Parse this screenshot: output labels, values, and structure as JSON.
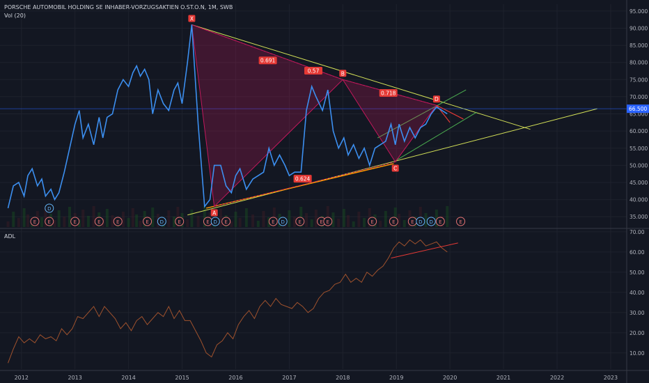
{
  "header": {
    "symbol_title": "PORSCHE AUTOMOBIL HOLDING SE INHABER-VORZUGSAKTIEN O.ST.O.N, 1M, SWB",
    "volume_label": "Vol (20)",
    "indicator_label": "ADL"
  },
  "colors": {
    "background": "#131722",
    "price_line": "#3c8ff0",
    "adl_line": "#a0522d",
    "pattern": "#c2185b",
    "trend_yellow": "#d4e157",
    "trend_orange": "#ff9800",
    "trend_green": "#4caf50",
    "price_tag": "#2962ff",
    "text": "#b2b5be"
  },
  "chart_data": [
    {
      "type": "line",
      "title": "PORSCHE AUTOMOBIL HOLDING SE INHABER-VORZUGSAKTIEN O.ST.O.N, 1M, SWB",
      "ylim": [
        32,
        97
      ],
      "yticks": [
        35,
        40,
        45,
        50,
        55,
        60,
        65,
        70,
        75,
        80,
        85,
        90,
        95
      ],
      "ytick_labels": [
        "35.000",
        "40.000",
        "45.000",
        "50.000",
        "55.000",
        "60.000",
        "65.000",
        "70.000",
        "75.000",
        "80.000",
        "85.000",
        "90.000",
        "95.000"
      ],
      "current_price": 66.5,
      "current_price_label": "66.500",
      "x": [
        2011.75,
        2011.85,
        2011.95,
        2012.05,
        2012.12,
        2012.2,
        2012.3,
        2012.38,
        2012.45,
        2012.55,
        2012.62,
        2012.7,
        2012.8,
        2012.9,
        2013.0,
        2013.08,
        2013.15,
        2013.25,
        2013.35,
        2013.45,
        2013.52,
        2013.6,
        2013.7,
        2013.8,
        2013.9,
        2014.0,
        2014.08,
        2014.15,
        2014.22,
        2014.3,
        2014.38,
        2014.45,
        2014.55,
        2014.65,
        2014.75,
        2014.85,
        2014.92,
        2015.0,
        2015.1,
        2015.18,
        2015.3,
        2015.42,
        2015.52,
        2015.6,
        2015.72,
        2015.82,
        2015.92,
        2016.0,
        2016.08,
        2016.2,
        2016.32,
        2016.42,
        2016.52,
        2016.62,
        2016.72,
        2016.82,
        2016.92,
        2017.0,
        2017.1,
        2017.22,
        2017.32,
        2017.42,
        2017.5,
        2017.62,
        2017.72,
        2017.82,
        2017.92,
        2018.02,
        2018.1,
        2018.2,
        2018.3,
        2018.4,
        2018.5,
        2018.6,
        2018.7,
        2018.8,
        2018.9,
        2018.98,
        2019.05,
        2019.15,
        2019.25,
        2019.35,
        2019.45,
        2019.55,
        2019.65,
        2019.75,
        2019.85,
        2019.95
      ],
      "series": [
        {
          "values": [
            37.5,
            44,
            45,
            41,
            47,
            49,
            44,
            46,
            41,
            43,
            40,
            42,
            48,
            55,
            62,
            66,
            58,
            62,
            56,
            64,
            58,
            64,
            65,
            72,
            75,
            73,
            77,
            79,
            76,
            78,
            75,
            65,
            72,
            68,
            66,
            72,
            74,
            68,
            80,
            91,
            62,
            38,
            40,
            50,
            50,
            44,
            42,
            47,
            49,
            43,
            46,
            47,
            48,
            55,
            50,
            53,
            50,
            47,
            48,
            48,
            66,
            73,
            70,
            66,
            72,
            60,
            55,
            58,
            53,
            56,
            52,
            55,
            50,
            55,
            56,
            57,
            62,
            56,
            62,
            57,
            61,
            58,
            61,
            62,
            65,
            67,
            66,
            65
          ]
        }
      ],
      "pattern_points": [
        {
          "name": "X",
          "x": 2015.18,
          "y": 91
        },
        {
          "name": "A",
          "x": 2015.6,
          "y": 38
        },
        {
          "name": "B",
          "x": 2018.0,
          "y": 75
        },
        {
          "name": "C",
          "x": 2018.98,
          "y": 51
        },
        {
          "name": "D",
          "x": 2019.75,
          "y": 67.5
        }
      ],
      "ratios": [
        {
          "label": "0.691",
          "x": 2016.6,
          "y": 80.5
        },
        {
          "label": "0.57",
          "x": 2017.45,
          "y": 77.5
        },
        {
          "label": "0.718",
          "x": 2018.85,
          "y": 71
        },
        {
          "label": "0.624",
          "x": 2017.25,
          "y": 46
        }
      ],
      "events": {
        "earnings_label": "E",
        "dividend_label": "D"
      }
    },
    {
      "type": "line",
      "title": "ADL",
      "ylim": [
        2,
        71
      ],
      "yticks": [
        10,
        20,
        30,
        40,
        50,
        60,
        70
      ],
      "ytick_labels": [
        "10.00",
        "20.00",
        "30.00",
        "40.00",
        "50.00",
        "60.00",
        "70.00"
      ],
      "x": [
        2011.75,
        2011.85,
        2011.95,
        2012.05,
        2012.15,
        2012.25,
        2012.35,
        2012.45,
        2012.55,
        2012.65,
        2012.75,
        2012.85,
        2012.95,
        2013.05,
        2013.15,
        2013.25,
        2013.35,
        2013.45,
        2013.55,
        2013.65,
        2013.75,
        2013.85,
        2013.95,
        2014.05,
        2014.15,
        2014.25,
        2014.35,
        2014.45,
        2014.55,
        2014.65,
        2014.75,
        2014.85,
        2014.95,
        2015.05,
        2015.15,
        2015.25,
        2015.35,
        2015.45,
        2015.55,
        2015.65,
        2015.75,
        2015.85,
        2015.95,
        2016.05,
        2016.15,
        2016.25,
        2016.35,
        2016.45,
        2016.55,
        2016.65,
        2016.75,
        2016.85,
        2016.95,
        2017.05,
        2017.15,
        2017.25,
        2017.35,
        2017.45,
        2017.55,
        2017.65,
        2017.75,
        2017.85,
        2017.95,
        2018.05,
        2018.15,
        2018.25,
        2018.35,
        2018.45,
        2018.55,
        2018.65,
        2018.75,
        2018.85,
        2018.95,
        2019.05,
        2019.15,
        2019.25,
        2019.35,
        2019.45,
        2019.55,
        2019.65,
        2019.75,
        2019.85,
        2019.95
      ],
      "series": [
        {
          "name": "ADL",
          "values": [
            5,
            12,
            18,
            15,
            17,
            15,
            19,
            17,
            18,
            16,
            22,
            19,
            22,
            28,
            27,
            30,
            33,
            28,
            33,
            30,
            27,
            22,
            25,
            21,
            26,
            28,
            24,
            27,
            30,
            28,
            33,
            27,
            31,
            26,
            26,
            21,
            16,
            10,
            8,
            14,
            16,
            20,
            17,
            24,
            28,
            31,
            27,
            33,
            36,
            33,
            37,
            34,
            33,
            32,
            35,
            33,
            30,
            32,
            37,
            40,
            41,
            44,
            45,
            49,
            45,
            47,
            45,
            50,
            48,
            51,
            53,
            57,
            62,
            65,
            63,
            66,
            64,
            66,
            63,
            64,
            65,
            62,
            60
          ]
        }
      ]
    }
  ],
  "x_axis": {
    "years": [
      2012,
      2013,
      2014,
      2015,
      2016,
      2017,
      2018,
      2019,
      2020,
      2021,
      2022,
      2023
    ],
    "labels": [
      "2012",
      "2013",
      "2014",
      "2015",
      "2016",
      "2017",
      "2018",
      "2019",
      "2020",
      "2021",
      "2022",
      "2023"
    ]
  }
}
